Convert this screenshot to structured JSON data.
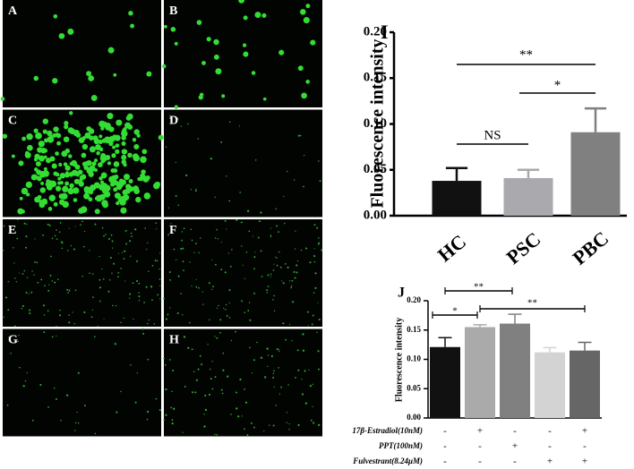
{
  "panels": [
    "A",
    "B",
    "C",
    "D",
    "E",
    "F",
    "G",
    "H"
  ],
  "chart_data": [
    {
      "type": "bar",
      "panel": "I",
      "ylabel": "Fluorescence intensity",
      "categories": [
        "HC",
        "PSC",
        "PBC"
      ],
      "values": [
        0.038,
        0.041,
        0.091
      ],
      "errors": [
        0.014,
        0.009,
        0.026
      ],
      "colors": [
        "#111111",
        "#a9a9ae",
        "#808080"
      ],
      "ylim": [
        0,
        0.2
      ],
      "yticks": [
        {
          "value": 0,
          "label": "0.00"
        },
        {
          "value": 0.05,
          "label": "0.05"
        },
        {
          "value": 0.1,
          "label": "0.10"
        },
        {
          "value": 0.15,
          "label": "0.15"
        },
        {
          "value": 0.2,
          "label": "0.20"
        }
      ],
      "annotations": [
        "**",
        "*",
        "NS"
      ]
    },
    {
      "type": "bar",
      "panel": "J",
      "ylabel": "Fluorescence intensity",
      "values": [
        0.121,
        0.155,
        0.161,
        0.112,
        0.115
      ],
      "errors": [
        0.016,
        0.004,
        0.016,
        0.008,
        0.014
      ],
      "colors": [
        "#111111",
        "#aaaaaa",
        "#808080",
        "#d3d3d3",
        "#666666"
      ],
      "ylim": [
        0,
        0.2
      ],
      "yticks": [
        {
          "value": 0,
          "label": "0.00"
        },
        {
          "value": 0.05,
          "label": "0.05"
        },
        {
          "value": 0.1,
          "label": "0.10"
        },
        {
          "value": 0.15,
          "label": "0.15"
        },
        {
          "value": 0.2,
          "label": "0.20"
        }
      ],
      "annotations": [
        "*",
        "**",
        "**"
      ],
      "treatments": [
        {
          "label": "17β-Estradiol(10nM)",
          "signs": [
            "-",
            "+",
            "-",
            "-",
            "+"
          ]
        },
        {
          "label": "PPT(100nM)",
          "signs": [
            "-",
            "-",
            "+",
            "-",
            "-"
          ]
        },
        {
          "label": "Fulvestrant(8.24μM)",
          "signs": [
            "-",
            "-",
            "-",
            "+",
            "+"
          ]
        }
      ]
    }
  ]
}
